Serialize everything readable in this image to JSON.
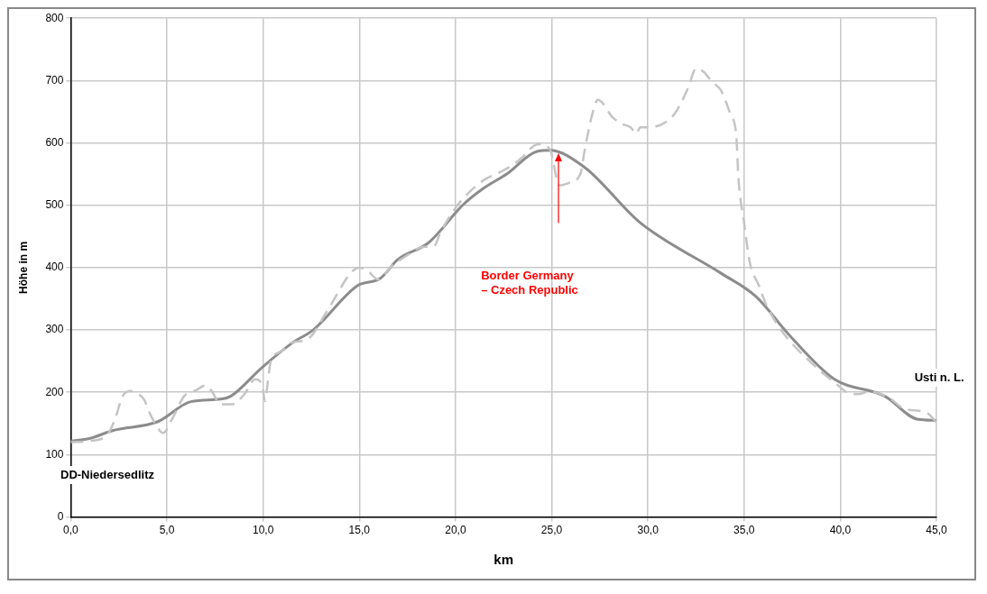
{
  "chart_data": {
    "type": "line",
    "xlabel": "km",
    "ylabel": "Höhe in m",
    "xlim": [
      0,
      45
    ],
    "ylim": [
      0,
      800
    ],
    "xticks": [
      {
        "value": 0,
        "label": "0,0"
      },
      {
        "value": 5,
        "label": "5,0"
      },
      {
        "value": 10,
        "label": "10,0"
      },
      {
        "value": 15,
        "label": "15,0"
      },
      {
        "value": 20,
        "label": "20,0"
      },
      {
        "value": 25,
        "label": "25,0"
      },
      {
        "value": 30,
        "label": "30,0"
      },
      {
        "value": 35,
        "label": "35,0"
      },
      {
        "value": 40,
        "label": "40,0"
      },
      {
        "value": 45,
        "label": "45,0"
      }
    ],
    "yticks": [
      0,
      100,
      200,
      300,
      400,
      500,
      600,
      700,
      800
    ],
    "grid": true,
    "legend": false,
    "marker": "none",
    "annotations": [
      "Border Germany\n– Czech Republic",
      "DD-Niedersedlitz",
      "Usti n. L."
    ],
    "series": [
      {
        "color": "#c4c4c4",
        "line_style": "dashed",
        "x": [
          0,
          1,
          1.9,
          2.3,
          2.7,
          3.1,
          3.45,
          3.8,
          4.1,
          4.4,
          4.8,
          5.3,
          5.9,
          6.5,
          7.0,
          7.3,
          7.8,
          8.4,
          9.0,
          9.6,
          9.95,
          10.1,
          10.2,
          10.4,
          10.9,
          11.5,
          12.3,
          13.3,
          14.6,
          15.0,
          15.5,
          15.96,
          16.7,
          17.4,
          18.3,
          18.9,
          19.2,
          19.8,
          20.4,
          21.5,
          22.3,
          22.9,
          23.4,
          24.3,
          24.9,
          25.4,
          25.9,
          26.5,
          26.7,
          27.1,
          27.4,
          28.2,
          28.7,
          29.1,
          29.4,
          29.6,
          30.1,
          31.2,
          31.6,
          32.1,
          32.5,
          32.9,
          33.3,
          33.8,
          34.3,
          34.6,
          34.7,
          35.0,
          35.3,
          35.8,
          36.1,
          36.7,
          37.3,
          38.9,
          39.7,
          40.3,
          40.9,
          41.5,
          42.5,
          43.3,
          44.5,
          45
        ],
        "values": [
          120,
          122,
          132,
          157,
          194,
          202,
          198,
          189,
          167,
          149,
          135,
          159,
          194,
          203,
          211,
          203,
          181,
          181,
          196,
          221,
          211,
          186,
          206,
          250,
          265,
          280,
          285,
          329,
          393,
          400,
          393,
          381,
          403,
          418,
          433,
          435,
          455,
          487,
          511,
          541,
          553,
          563,
          575,
          598,
          590,
          532,
          536,
          551,
          586,
          645,
          669,
          640,
          630,
          625,
          615,
          625,
          625,
          640,
          657,
          689,
          719,
          714,
          699,
          684,
          645,
          610,
          546,
          472,
          408,
          369,
          344,
          310,
          285,
          236,
          216,
          201,
          197,
          201,
          192,
          174,
          167,
          152
        ]
      },
      {
        "color": "#8c8c8c",
        "line_style": "solid",
        "x": [
          0,
          0.98,
          2.21,
          4.53,
          6.24,
          7.79,
          8.33,
          9.95,
          11.5,
          12.6,
          14.9,
          16.1,
          17.0,
          18.6,
          20.4,
          21.4,
          22.7,
          24.2,
          24.9,
          26.7,
          29.6,
          33.8,
          35.6,
          37.4,
          39.7,
          42.3,
          44.0,
          45
        ],
        "values": [
          122,
          126,
          139,
          153,
          185,
          189,
          194,
          240,
          279,
          300,
          371,
          383,
          413,
          440,
          501,
          526,
          551,
          586,
          588,
          561,
          472,
          391,
          354,
          290,
          221,
          194,
          157,
          155
        ]
      }
    ]
  }
}
